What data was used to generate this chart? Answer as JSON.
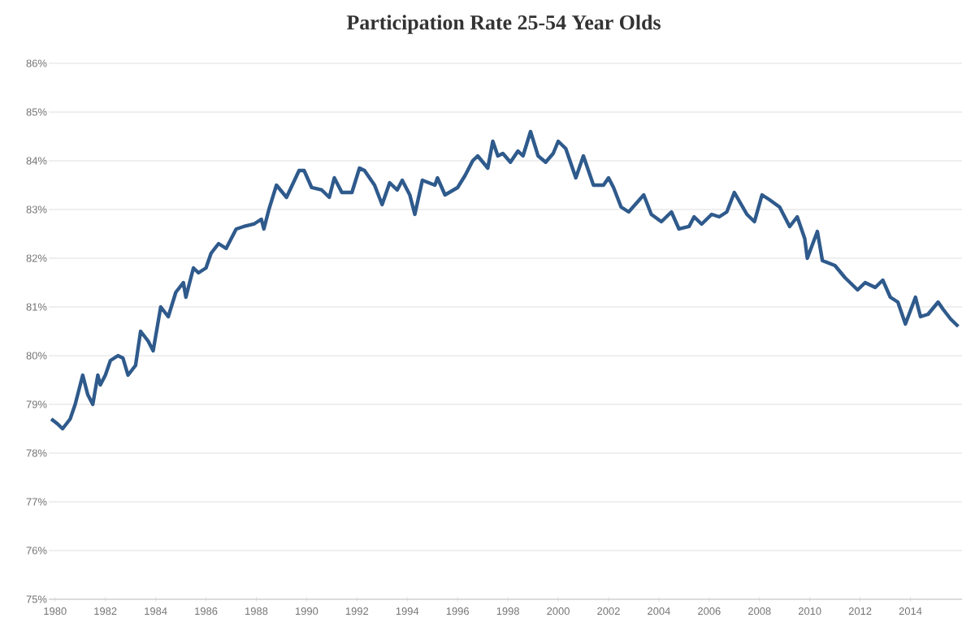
{
  "chart_data": {
    "type": "line",
    "title": "Participation Rate 25-54 Year Olds",
    "xlim": [
      1979.75,
      2016.05
    ],
    "ylim": [
      75,
      86
    ],
    "xticks": [
      1980,
      1982,
      1984,
      1986,
      1988,
      1990,
      1992,
      1994,
      1996,
      1998,
      2000,
      2002,
      2004,
      2006,
      2008,
      2010,
      2012,
      2014
    ],
    "yticks": [
      {
        "value": 75,
        "label": "75%"
      },
      {
        "value": 76,
        "label": "76%"
      },
      {
        "value": 77,
        "label": "77%"
      },
      {
        "value": 78,
        "label": "78%"
      },
      {
        "value": 79,
        "label": "79%"
      },
      {
        "value": 80,
        "label": "80%"
      },
      {
        "value": 81,
        "label": "81%"
      },
      {
        "value": 82,
        "label": "82%"
      },
      {
        "value": 83,
        "label": "83%"
      },
      {
        "value": 84,
        "label": "84%"
      },
      {
        "value": 85,
        "label": "85%"
      },
      {
        "value": 86,
        "label": "86%"
      }
    ],
    "grid": "y",
    "marker": "none",
    "line_style": "solid",
    "series": [
      {
        "color": "#2f5a8c",
        "x": [
          1979.85,
          1980.1,
          1980.3,
          1980.6,
          1980.8,
          1981.0,
          1981.1,
          1981.3,
          1981.5,
          1981.7,
          1981.8,
          1982.0,
          1982.2,
          1982.5,
          1982.7,
          1982.9,
          1983.2,
          1983.4,
          1983.7,
          1983.9,
          1984.2,
          1984.5,
          1984.8,
          1985.1,
          1985.2,
          1985.5,
          1985.7,
          1986.0,
          1986.2,
          1986.5,
          1986.8,
          1987.2,
          1987.5,
          1987.9,
          1988.2,
          1988.3,
          1988.5,
          1988.8,
          1989.2,
          1989.7,
          1989.9,
          1990.2,
          1990.6,
          1990.9,
          1991.1,
          1991.4,
          1991.8,
          1992.1,
          1992.3,
          1992.7,
          1993.0,
          1993.3,
          1993.6,
          1993.8,
          1994.1,
          1994.3,
          1994.6,
          1995.1,
          1995.2,
          1995.5,
          1996.0,
          1996.3,
          1996.6,
          1996.8,
          1997.2,
          1997.4,
          1997.6,
          1997.8,
          1998.1,
          1998.4,
          1998.6,
          1998.9,
          1999.2,
          1999.5,
          1999.8,
          2000.0,
          2000.3,
          2000.7,
          2001.0,
          2001.4,
          2001.8,
          2002.0,
          2002.2,
          2002.5,
          2002.8,
          2003.4,
          2003.7,
          2004.1,
          2004.5,
          2004.8,
          2005.2,
          2005.4,
          2005.7,
          2006.1,
          2006.4,
          2006.7,
          2007.0,
          2007.5,
          2007.8,
          2008.1,
          2008.4,
          2008.8,
          2009.2,
          2009.5,
          2009.8,
          2009.9,
          2010.3,
          2010.5,
          2011.0,
          2011.4,
          2011.9,
          2012.2,
          2012.6,
          2012.9,
          2013.2,
          2013.5,
          2013.8,
          2014.2,
          2014.4,
          2014.7,
          2015.1,
          2015.3,
          2015.6,
          2015.9
        ],
        "values": [
          78.7,
          78.6,
          78.5,
          78.7,
          79.0,
          79.4,
          79.6,
          79.2,
          79.0,
          79.6,
          79.4,
          79.6,
          79.9,
          80.0,
          79.95,
          79.6,
          79.8,
          80.5,
          80.3,
          80.1,
          81.0,
          80.8,
          81.3,
          81.5,
          81.2,
          81.8,
          81.7,
          81.8,
          82.1,
          82.3,
          82.2,
          82.6,
          82.65,
          82.7,
          82.8,
          82.6,
          83.0,
          83.5,
          83.25,
          83.8,
          83.8,
          83.45,
          83.4,
          83.25,
          83.65,
          83.35,
          83.35,
          83.85,
          83.8,
          83.5,
          83.1,
          83.55,
          83.4,
          83.6,
          83.3,
          82.9,
          83.6,
          83.5,
          83.65,
          83.3,
          83.45,
          83.7,
          84.0,
          84.1,
          83.85,
          84.4,
          84.1,
          84.15,
          83.97,
          84.2,
          84.1,
          84.6,
          84.1,
          83.97,
          84.15,
          84.4,
          84.25,
          83.65,
          84.1,
          83.5,
          83.5,
          83.65,
          83.45,
          83.05,
          82.95,
          83.3,
          82.9,
          82.75,
          82.95,
          82.6,
          82.65,
          82.85,
          82.7,
          82.9,
          82.85,
          82.95,
          83.35,
          82.9,
          82.75,
          83.3,
          83.2,
          83.05,
          82.65,
          82.85,
          82.4,
          82.0,
          82.55,
          81.95,
          81.85,
          81.6,
          81.35,
          81.5,
          81.4,
          81.55,
          81.2,
          81.1,
          80.65,
          81.2,
          80.8,
          80.85,
          81.1,
          80.95,
          80.75,
          80.6
        ]
      }
    ]
  }
}
